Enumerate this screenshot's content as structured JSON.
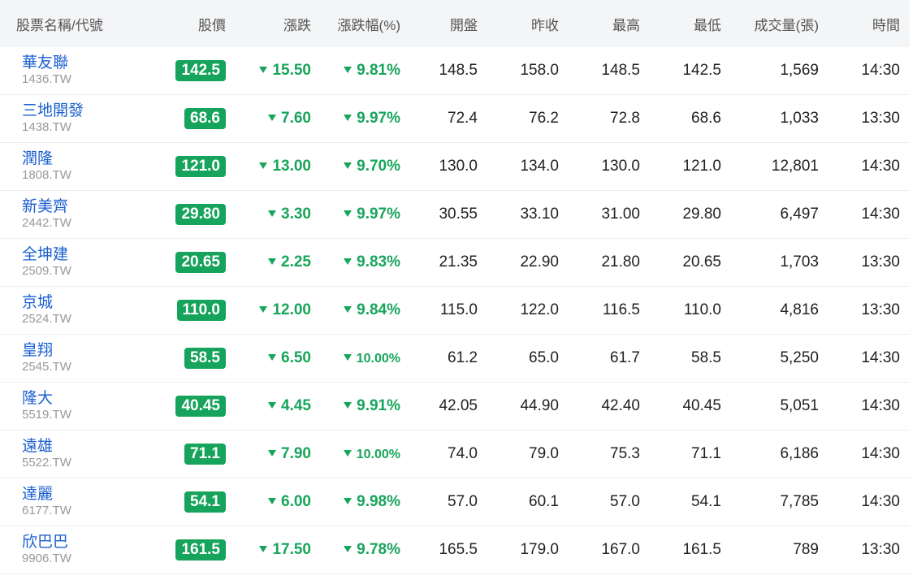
{
  "header": [
    "股票名稱/代號",
    "股價",
    "漲跌",
    "漲跌幅(%)",
    "開盤",
    "昨收",
    "最高",
    "最低",
    "成交量(張)",
    "時間"
  ],
  "rows": [
    [
      "華友聯",
      "1436.TW",
      "142.5",
      "15.50",
      "9.81%",
      "148.5",
      "158.0",
      "148.5",
      "142.5",
      "1,569",
      "14:30"
    ],
    [
      "三地開發",
      "1438.TW",
      "68.6",
      "7.60",
      "9.97%",
      "72.4",
      "76.2",
      "72.8",
      "68.6",
      "1,033",
      "13:30"
    ],
    [
      "潤隆",
      "1808.TW",
      "121.0",
      "13.00",
      "9.70%",
      "130.0",
      "134.0",
      "130.0",
      "121.0",
      "12,801",
      "14:30"
    ],
    [
      "新美齊",
      "2442.TW",
      "29.80",
      "3.30",
      "9.97%",
      "30.55",
      "33.10",
      "31.00",
      "29.80",
      "6,497",
      "14:30"
    ],
    [
      "全坤建",
      "2509.TW",
      "20.65",
      "2.25",
      "9.83%",
      "21.35",
      "22.90",
      "21.80",
      "20.65",
      "1,703",
      "13:30"
    ],
    [
      "京城",
      "2524.TW",
      "110.0",
      "12.00",
      "9.84%",
      "115.0",
      "122.0",
      "116.5",
      "110.0",
      "4,816",
      "13:30"
    ],
    [
      "皇翔",
      "2545.TW",
      "58.5",
      "6.50",
      "10.00%",
      "61.2",
      "65.0",
      "61.7",
      "58.5",
      "5,250",
      "14:30"
    ],
    [
      "隆大",
      "5519.TW",
      "40.45",
      "4.45",
      "9.91%",
      "42.05",
      "44.90",
      "42.40",
      "40.45",
      "5,051",
      "14:30"
    ],
    [
      "遠雄",
      "5522.TW",
      "71.1",
      "7.90",
      "10.00%",
      "74.0",
      "79.0",
      "75.3",
      "71.1",
      "6,186",
      "14:30"
    ],
    [
      "達麗",
      "6177.TW",
      "54.1",
      "6.00",
      "9.98%",
      "57.0",
      "60.1",
      "57.0",
      "54.1",
      "7,785",
      "14:30"
    ],
    [
      "欣巴巴",
      "9906.TW",
      "161.5",
      "17.50",
      "9.78%",
      "165.5",
      "179.0",
      "167.0",
      "161.5",
      "789",
      "13:30"
    ]
  ]
}
